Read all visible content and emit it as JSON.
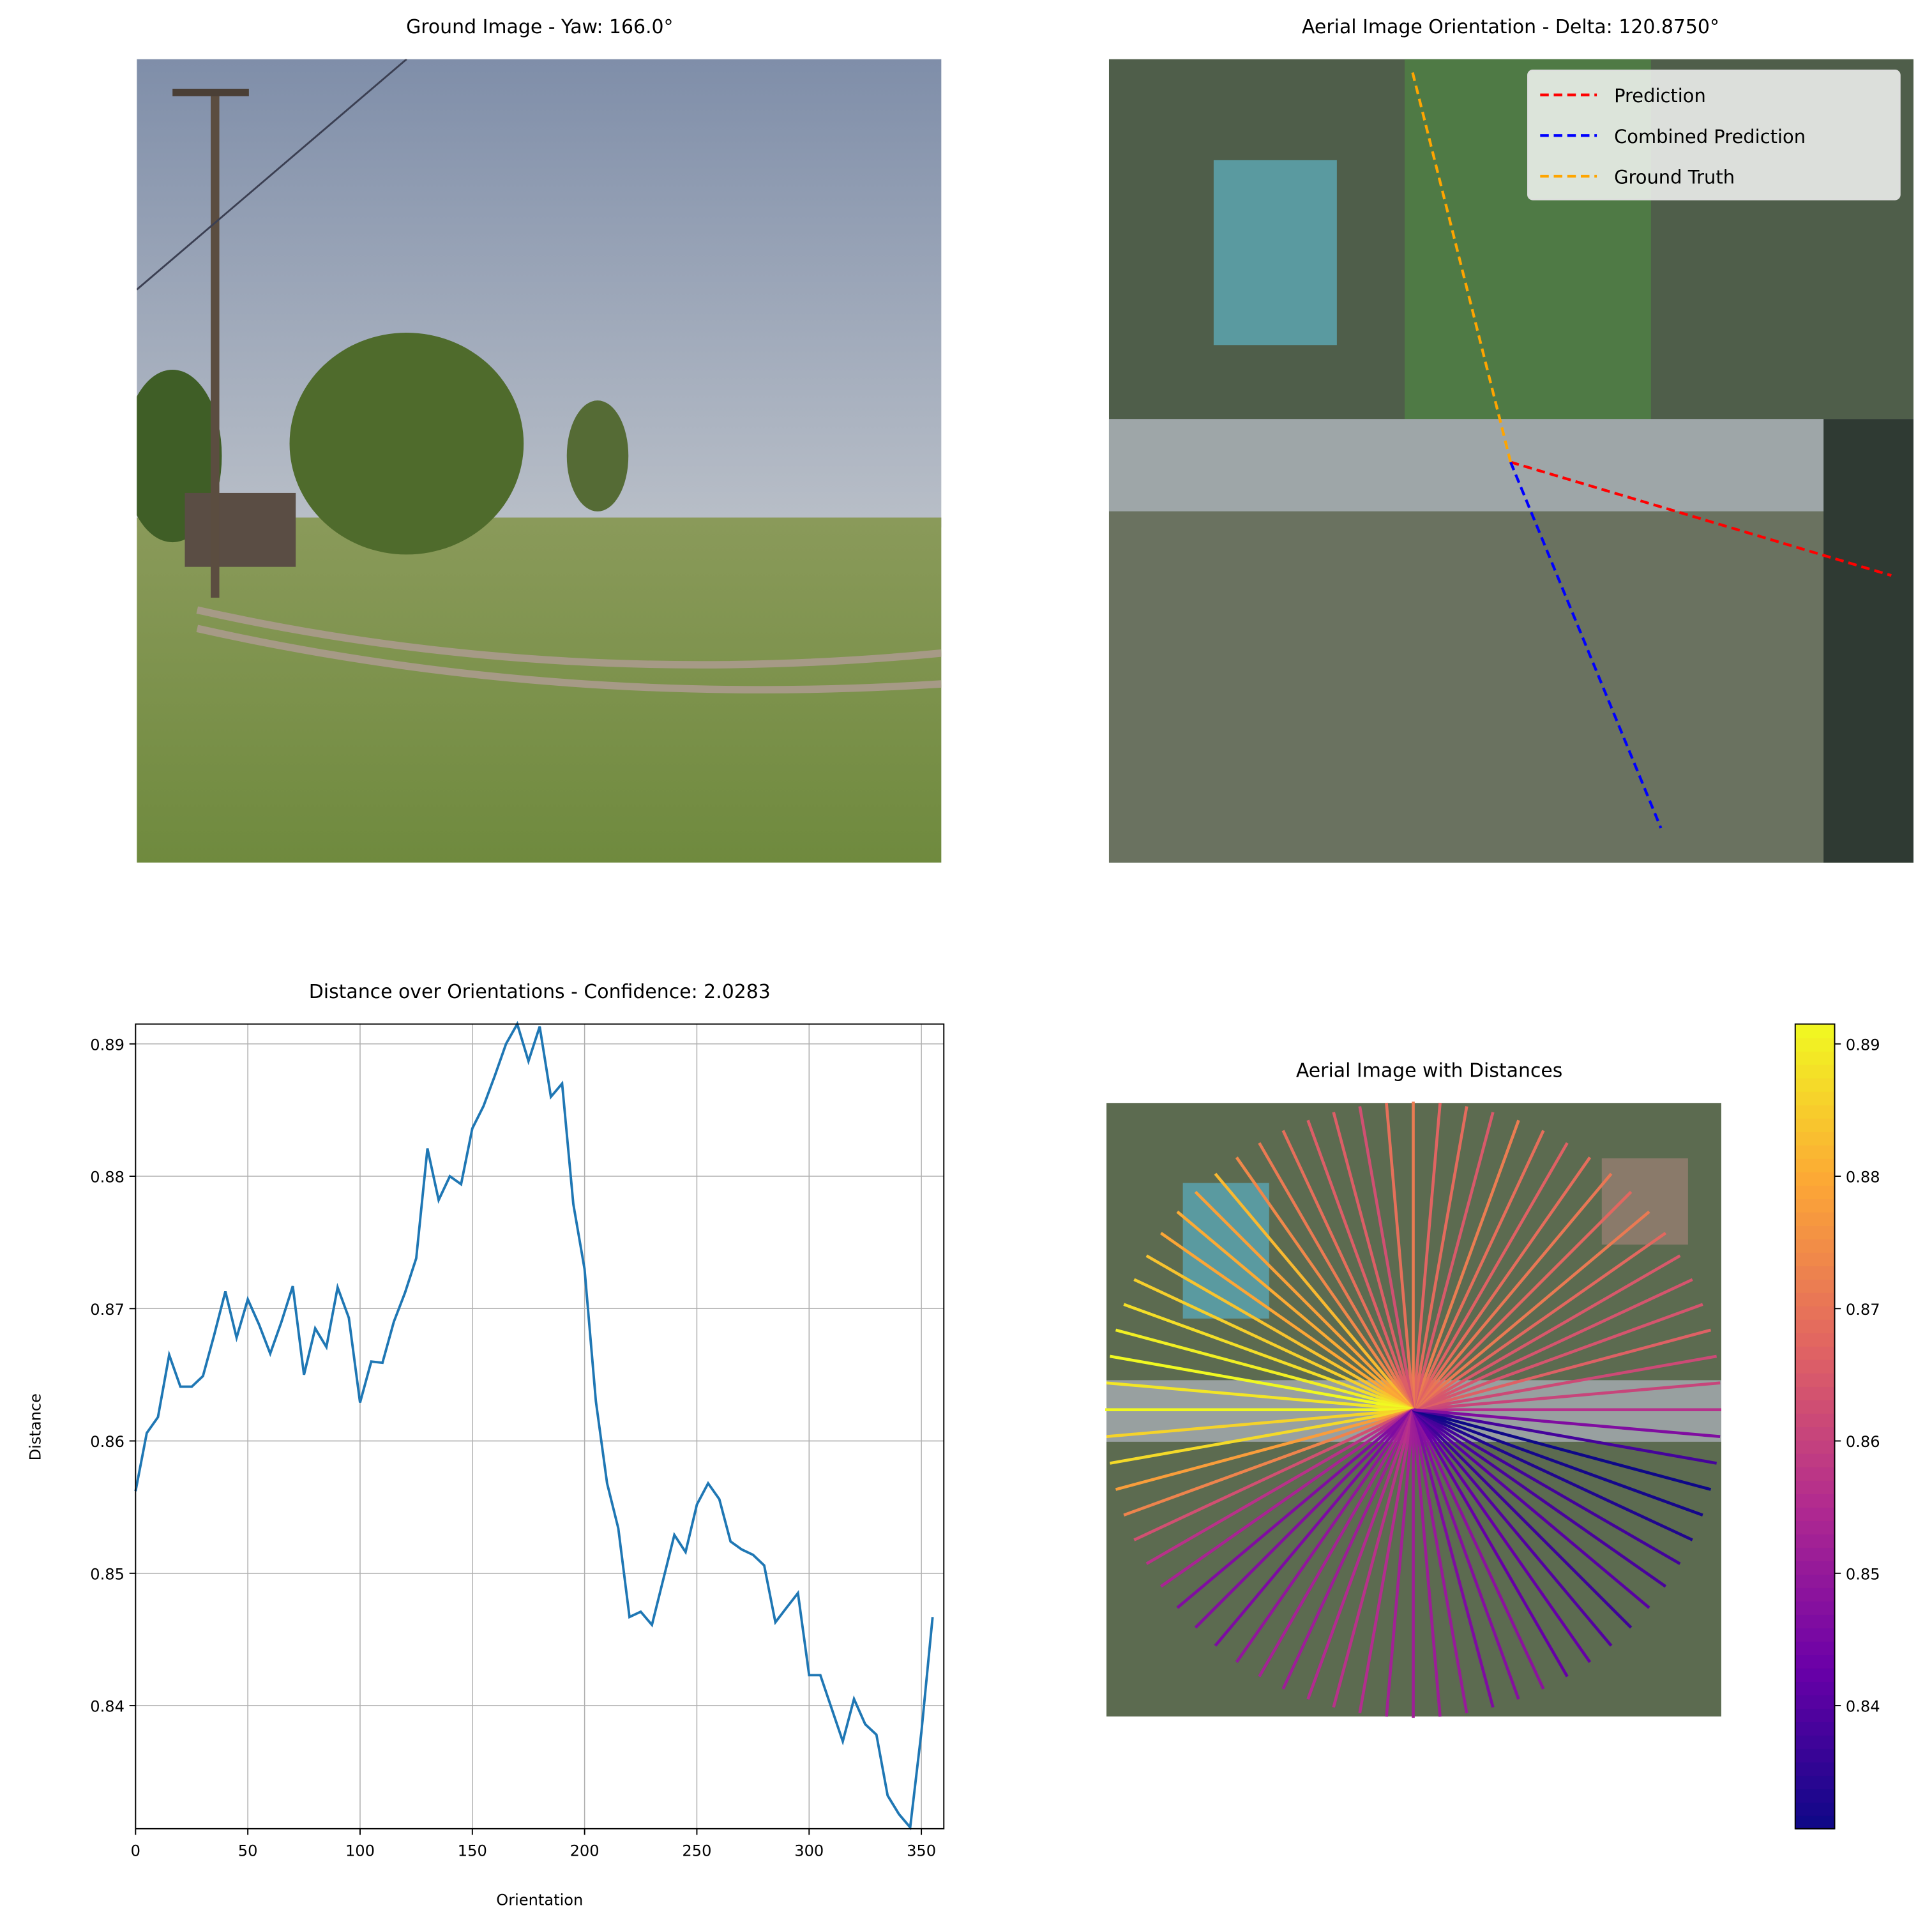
{
  "chart_data": [
    {
      "type": "image",
      "title": "Ground Image - Yaw: 166.0°"
    },
    {
      "type": "orientation",
      "title": "Aerial Image Orientation - Delta: 120.8750°",
      "series": [
        {
          "name": "Prediction",
          "color": "#ff0000"
        },
        {
          "name": "Combined Prediction",
          "color": "#0000ff"
        },
        {
          "name": "Ground Truth",
          "color": "#ffa500"
        }
      ],
      "legend": "upper right"
    },
    {
      "type": "line",
      "title": "Distance over Orientations - Confidence: 2.0283",
      "x_label": "Orientation",
      "y_label": "Distance",
      "x": [
        0,
        5,
        10,
        15,
        20,
        25,
        30,
        35,
        40,
        45,
        50,
        55,
        60,
        65,
        70,
        75,
        80,
        85,
        90,
        95,
        100,
        105,
        110,
        115,
        120,
        125,
        130,
        135,
        140,
        145,
        150,
        155,
        160,
        165,
        170,
        175,
        180,
        185,
        190,
        195,
        200,
        205,
        210,
        215,
        220,
        225,
        230,
        235,
        240,
        245,
        250,
        255,
        260,
        265,
        270,
        275,
        280,
        285,
        290,
        295,
        300,
        305,
        310,
        315,
        320,
        325,
        330,
        335,
        340,
        345,
        350,
        355
      ],
      "values": [
        0.8562,
        0.8606,
        0.8618,
        0.8665,
        0.8641,
        0.8641,
        0.8649,
        0.868,
        0.8713,
        0.8678,
        0.8707,
        0.8688,
        0.8666,
        0.869,
        0.8717,
        0.865,
        0.8685,
        0.8671,
        0.8716,
        0.8693,
        0.8629,
        0.866,
        0.8659,
        0.869,
        0.8712,
        0.8738,
        0.8821,
        0.8782,
        0.88,
        0.8794,
        0.8836,
        0.8853,
        0.8876,
        0.89,
        0.8915,
        0.8887,
        0.8913,
        0.886,
        0.887,
        0.8779,
        0.873,
        0.863,
        0.8568,
        0.8534,
        0.8467,
        0.8471,
        0.8461,
        0.8495,
        0.8529,
        0.8516,
        0.8552,
        0.8568,
        0.8556,
        0.8524,
        0.8518,
        0.8514,
        0.8506,
        0.8463,
        0.8474,
        0.8485,
        0.8423,
        0.8423,
        0.8398,
        0.8373,
        0.8405,
        0.8386,
        0.8378,
        0.8332,
        0.8318,
        0.8308,
        0.838,
        0.8467
      ],
      "color": "#1f77b4",
      "xlim": [
        0,
        360
      ],
      "ylim": [
        0.8307,
        0.8915
      ],
      "xticks": [
        0,
        50,
        100,
        150,
        200,
        250,
        300,
        350
      ],
      "yticks": [
        0.84,
        0.85,
        0.86,
        0.87,
        0.88,
        0.89
      ],
      "grid": true
    },
    {
      "type": "radial",
      "title": "Aerial Image with Distances",
      "colormap": "plasma",
      "x": [
        0,
        5,
        10,
        15,
        20,
        25,
        30,
        35,
        40,
        45,
        50,
        55,
        60,
        65,
        70,
        75,
        80,
        85,
        90,
        95,
        100,
        105,
        110,
        115,
        120,
        125,
        130,
        135,
        140,
        145,
        150,
        155,
        160,
        165,
        170,
        175,
        180,
        185,
        190,
        195,
        200,
        205,
        210,
        215,
        220,
        225,
        230,
        235,
        240,
        245,
        250,
        255,
        260,
        265,
        270,
        275,
        280,
        285,
        290,
        295,
        300,
        305,
        310,
        315,
        320,
        325,
        330,
        335,
        340,
        345,
        350,
        355
      ],
      "values": [
        0.8562,
        0.8606,
        0.8618,
        0.8665,
        0.8641,
        0.8641,
        0.8649,
        0.868,
        0.8713,
        0.8678,
        0.8707,
        0.8688,
        0.8666,
        0.869,
        0.8717,
        0.865,
        0.8685,
        0.8671,
        0.8716,
        0.8693,
        0.8629,
        0.866,
        0.8659,
        0.869,
        0.8712,
        0.8738,
        0.8821,
        0.8782,
        0.88,
        0.8794,
        0.8836,
        0.8853,
        0.8876,
        0.89,
        0.8915,
        0.8887,
        0.8913,
        0.886,
        0.887,
        0.8779,
        0.873,
        0.863,
        0.8568,
        0.8534,
        0.8467,
        0.8471,
        0.8461,
        0.8495,
        0.8529,
        0.8516,
        0.8552,
        0.8568,
        0.8556,
        0.8524,
        0.8518,
        0.8514,
        0.8506,
        0.8463,
        0.8474,
        0.8485,
        0.8423,
        0.8423,
        0.8398,
        0.8373,
        0.8405,
        0.8386,
        0.8378,
        0.8332,
        0.8318,
        0.8308,
        0.838,
        0.8467
      ],
      "clim": [
        0.8307,
        0.8915
      ],
      "cticks": [
        0.84,
        0.85,
        0.86,
        0.87,
        0.88,
        0.89
      ]
    }
  ]
}
